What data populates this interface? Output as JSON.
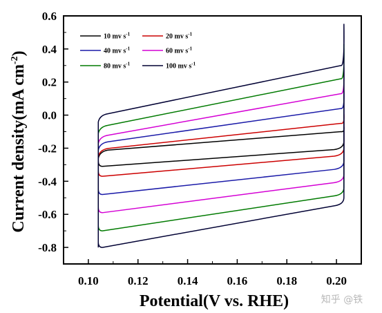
{
  "chart_data": {
    "type": "line",
    "xlabel": "Potential(V vs. RHE)",
    "ylabel": "Current density(mA cm",
    "ylabel_sup": "-2",
    "ylabel_close": ")",
    "xlim": [
      0.09,
      0.21
    ],
    "ylim": [
      -0.9,
      0.6
    ],
    "xticks": [
      0.1,
      0.12,
      0.14,
      0.16,
      0.18,
      0.2
    ],
    "xtick_labels": [
      "0.10",
      "0.12",
      "0.14",
      "0.16",
      "0.18",
      "0.20"
    ],
    "yticks": [
      -0.8,
      -0.6,
      -0.4,
      -0.2,
      0.0,
      0.2,
      0.4,
      0.6
    ],
    "ytick_labels": [
      "-0.8",
      "-0.6",
      "-0.4",
      "-0.2",
      "0.0",
      "0.2",
      "0.4",
      "0.6"
    ],
    "legend_position": "top-left",
    "legend_unit": "mv s",
    "legend_unit_sup": "-1",
    "x_range": [
      0.104,
      0.203
    ],
    "grid": false,
    "series": [
      {
        "name": "10",
        "color": "#000000",
        "upper": [
          -0.22,
          -0.1
        ],
        "lower": [
          -0.31,
          -0.2
        ]
      },
      {
        "name": "20",
        "color": "#cc0000",
        "upper": [
          -0.21,
          -0.05
        ],
        "lower": [
          -0.37,
          -0.24
        ]
      },
      {
        "name": "40",
        "color": "#1a1aa8",
        "upper": [
          -0.17,
          0.04
        ],
        "lower": [
          -0.48,
          -0.32
        ]
      },
      {
        "name": "60",
        "color": "#d400d4",
        "upper": [
          -0.13,
          0.13
        ],
        "lower": [
          -0.59,
          -0.4
        ]
      },
      {
        "name": "80",
        "color": "#007a00",
        "upper": [
          -0.07,
          0.22
        ],
        "lower": [
          -0.7,
          -0.48
        ]
      },
      {
        "name": "100",
        "color": "#000033",
        "upper": [
          0.0,
          0.3
        ],
        "lower": [
          -0.8,
          -0.54
        ]
      }
    ]
  },
  "watermark": "知乎 @铁"
}
